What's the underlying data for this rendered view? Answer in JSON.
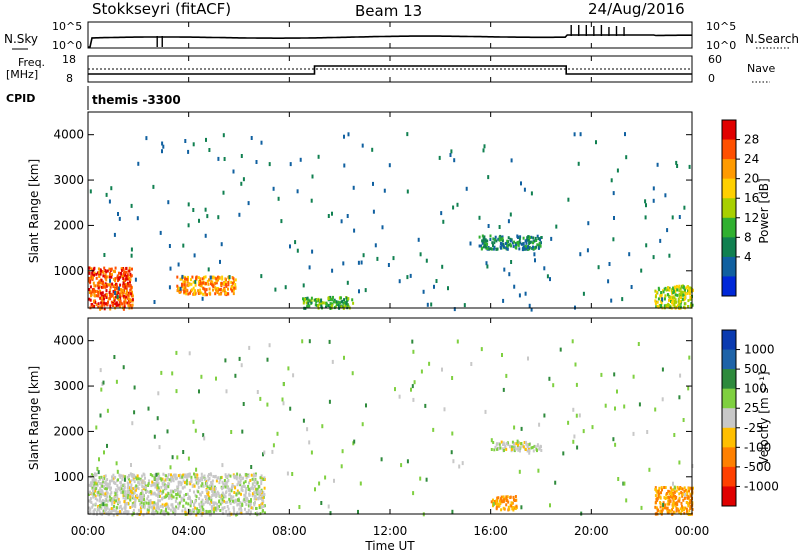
{
  "header": {
    "station": "Stokkseyri (fitACF)",
    "beam": "Beam 13",
    "date": "24/Aug/2016"
  },
  "panels": {
    "nsky": {
      "label": "N.Sky",
      "ticks": [
        "10^5",
        "10^0"
      ],
      "right_label": "N.Search",
      "right_ticks": [
        "10^5",
        "10^0"
      ]
    },
    "freq": {
      "label_line1": "Freq.",
      "label_line2": "[MHz]",
      "ticks": [
        "18",
        "8"
      ],
      "right_label": "Nave",
      "right_ticks": [
        "60",
        "0"
      ]
    },
    "cpid": {
      "label": "CPID",
      "value": "themis -3300"
    }
  },
  "colorbars": {
    "power": {
      "label": "Power [dB]",
      "ticks": [
        "28",
        "24",
        "20",
        "16",
        "12",
        "8",
        "4"
      ],
      "colors": [
        "#e00000",
        "#ff5000",
        "#ff9a00",
        "#ffd000",
        "#a8d000",
        "#30b030",
        "#108050",
        "#1060a0",
        "#0028d8"
      ]
    },
    "velocity": {
      "label": "Velocity [m s⁻¹]",
      "ticks": [
        "1000",
        "500",
        "100",
        "25",
        "-25",
        "-100",
        "-500",
        "-1000"
      ],
      "colors": [
        "#0a3ab0",
        "#1e63a8",
        "#2e8a3c",
        "#7fd040",
        "#c8c8c8",
        "#ffbf00",
        "#ff8000",
        "#ff4000",
        "#e00000"
      ]
    }
  },
  "chart_data": [
    {
      "type": "line",
      "title": "N.Sky",
      "x": [
        "00:00",
        "04:00",
        "08:00",
        "12:00",
        "16:00",
        "20:00",
        "00:00"
      ],
      "xlim": [
        "00:00",
        "24:00"
      ],
      "series": [
        {
          "name": "N.Sky",
          "values": [
            10,
            12,
            11,
            13,
            14,
            40,
            18
          ]
        }
      ]
    },
    {
      "type": "line",
      "title": "Freq. [MHz]",
      "ylim": [
        8,
        18
      ],
      "series": [
        {
          "name": "Nave",
          "x": [
            "00:00",
            "09:00",
            "09:00",
            "19:00",
            "19:00",
            "24:00"
          ],
          "values": [
            3,
            3,
            20,
            20,
            3,
            3
          ]
        }
      ]
    },
    {
      "type": "heatmap",
      "title": "Power [dB]",
      "xlabel": "",
      "ylabel": "Slant Range [km]",
      "xlim": [
        "00:00",
        "24:00"
      ],
      "ylim": [
        180,
        4500
      ],
      "yticks": [
        1000,
        2000,
        3000,
        4000
      ],
      "regions": [
        {
          "t_start": "00:00",
          "t_end": "01:45",
          "range_start": 180,
          "range_end": 1100,
          "value_db": 24
        },
        {
          "t_start": "03:30",
          "t_end": "05:50",
          "range_start": 500,
          "range_end": 900,
          "value_db": 22
        },
        {
          "t_start": "08:30",
          "t_end": "10:30",
          "range_start": 200,
          "range_end": 450,
          "value_db": 8
        },
        {
          "t_start": "15:30",
          "t_end": "18:00",
          "range_start": 1500,
          "range_end": 1800,
          "value_db": 6
        },
        {
          "t_start": "22:30",
          "t_end": "24:00",
          "range_start": 200,
          "range_end": 700,
          "value_db": 14
        }
      ]
    },
    {
      "type": "heatmap",
      "title": "Velocity [m s-1]",
      "xlabel": "Time UT",
      "ylabel": "Slant Range [km]",
      "xlim": [
        "00:00",
        "24:00"
      ],
      "ylim": [
        180,
        4500
      ],
      "yticks": [
        1000,
        2000,
        3000,
        4000
      ],
      "xticks": [
        "00:00",
        "04:00",
        "08:00",
        "12:00",
        "16:00",
        "20:00",
        "00:00"
      ],
      "regions": [
        {
          "t_start": "00:00",
          "t_end": "07:00",
          "range_start": 180,
          "range_end": 1100,
          "value_ms": 0
        },
        {
          "t_start": "16:00",
          "t_end": "18:00",
          "range_start": 1600,
          "range_end": 1800,
          "value_ms": 0
        },
        {
          "t_start": "16:00",
          "t_end": "17:00",
          "range_start": 300,
          "range_end": 600,
          "value_ms": -300
        },
        {
          "t_start": "22:30",
          "t_end": "24:00",
          "range_start": 200,
          "range_end": 800,
          "value_ms": -200
        }
      ]
    }
  ]
}
